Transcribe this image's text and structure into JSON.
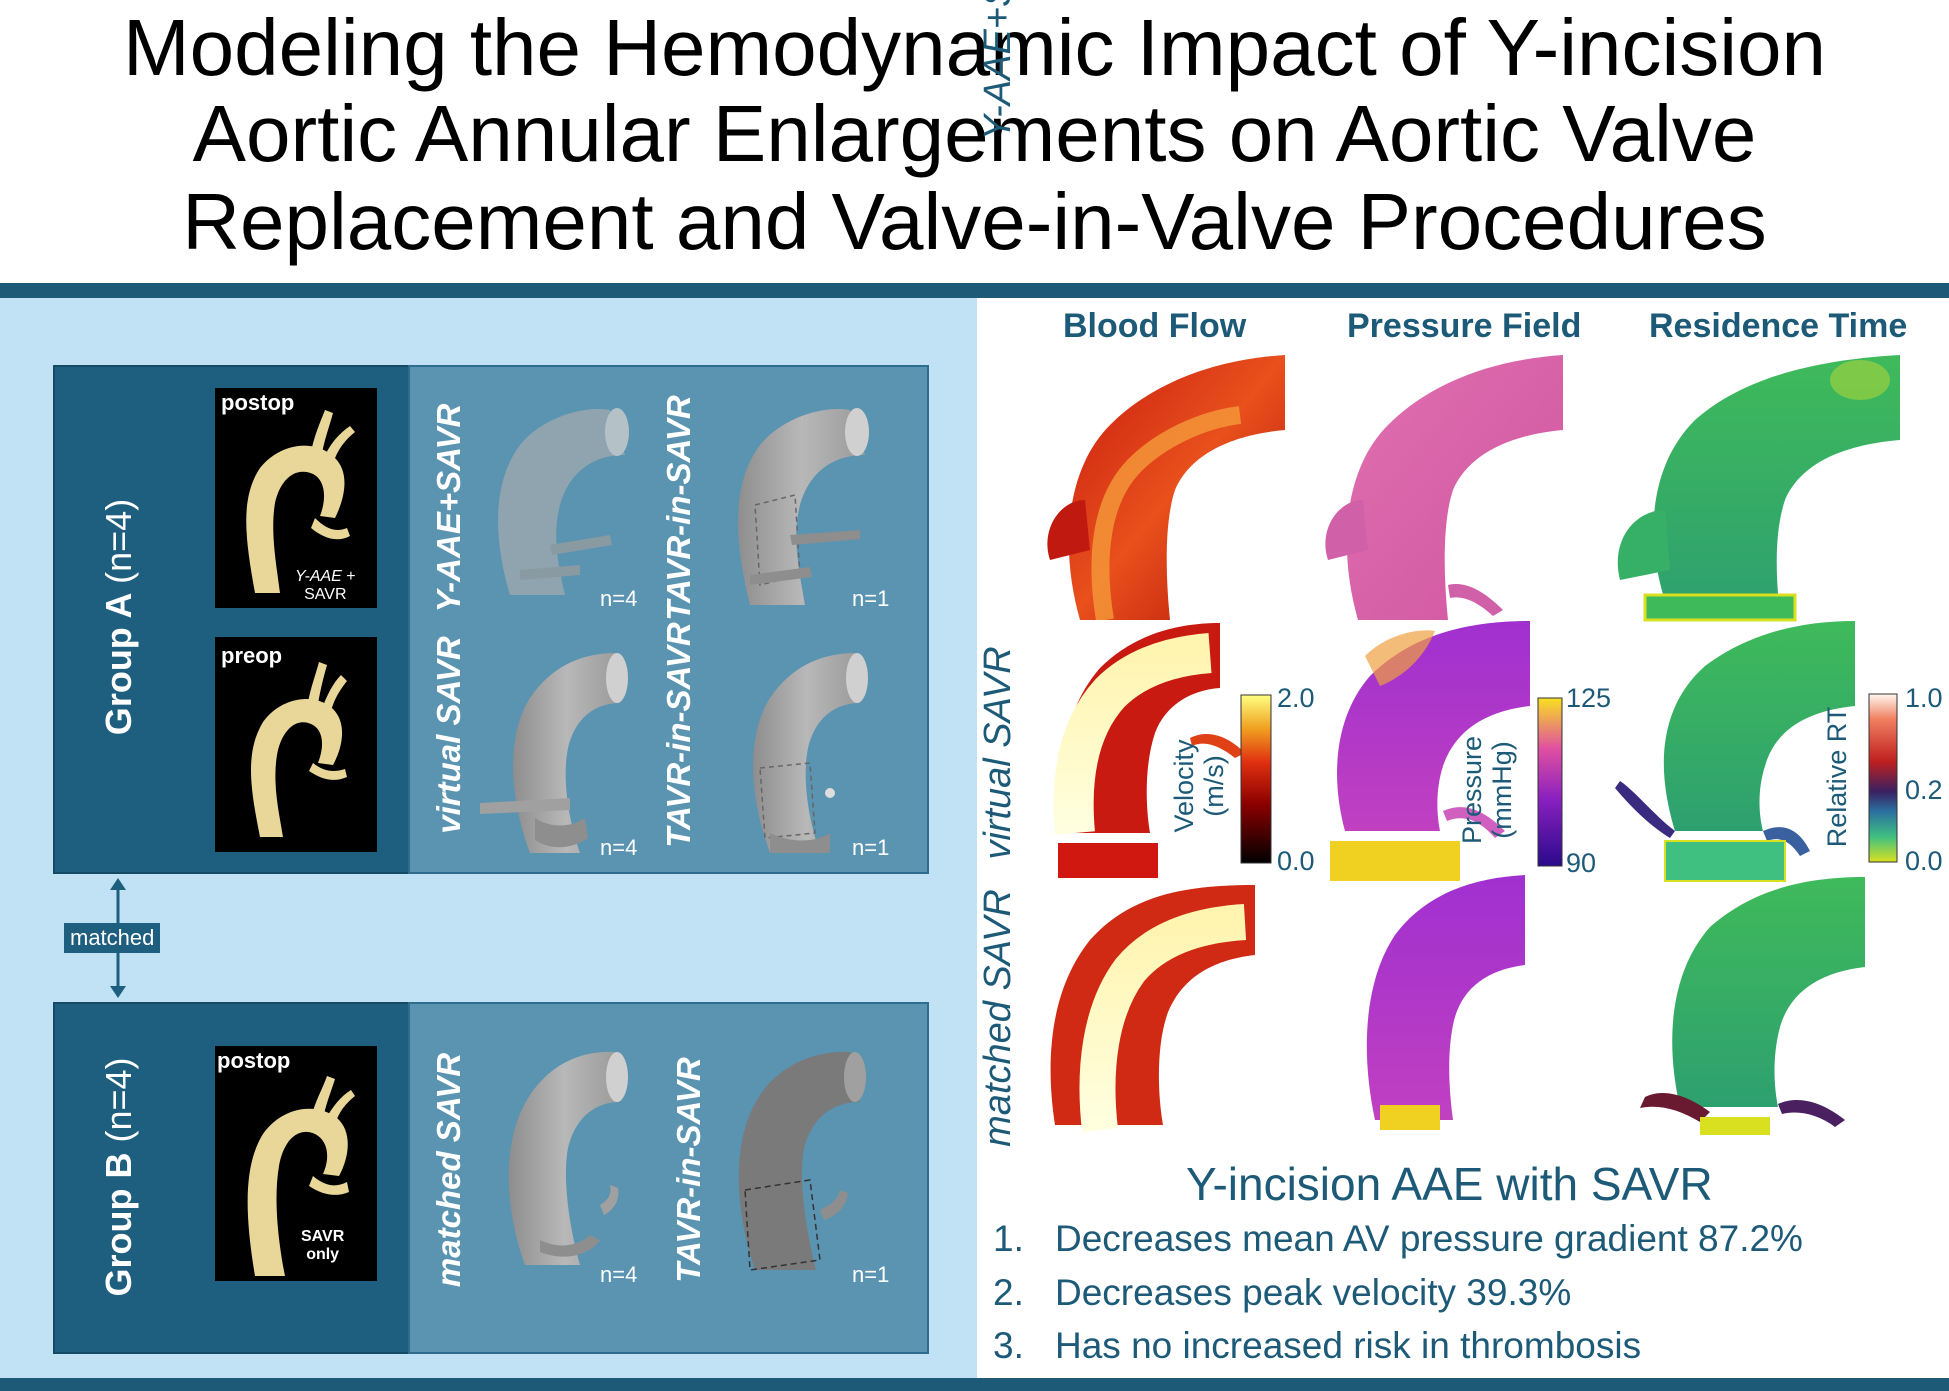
{
  "title": {
    "line1": "Modeling the Hemodynamic Impact of Y-incision",
    "line2": "Aortic Annular Enlargements on Aortic Valve",
    "line3": "Replacement and Valve-in-Valve Procedures"
  },
  "groups": [
    {
      "name": "Group A",
      "count": "(n=4)",
      "images": [
        {
          "label": "postop",
          "caption_italic": "Y-AAE",
          "caption_plus": " +",
          "caption_line2": "SAVR"
        },
        {
          "label": "preop"
        }
      ],
      "models": [
        {
          "label": "Y-AAE+SAVR",
          "n": [
            "n=4",
            "n=1"
          ],
          "second_label": "TAVR-in-SAVR"
        },
        {
          "label": "virtual SAVR",
          "n": [
            "n=4",
            "n=1"
          ],
          "second_label": "TAVR-in-SAVR"
        }
      ]
    },
    {
      "name": "Group B",
      "count": "(n=4)",
      "images": [
        {
          "label": "postop",
          "caption_line1": "SAVR",
          "caption_line2": "only"
        }
      ],
      "models": [
        {
          "label": "matched SAVR",
          "n": [
            "n=4",
            "n=1"
          ],
          "second_label": "TAVR-in-SAVR"
        }
      ]
    }
  ],
  "matched_label": "matched",
  "results": {
    "columns": [
      "Blood Flow",
      "Pressure Field",
      "Residence Time"
    ],
    "rows": [
      "Y-AAE+SAVR",
      "virtual SAVR",
      "matched SAVR"
    ],
    "colorbars": [
      {
        "title_line1": "Velocity",
        "title_line2": "(m/s)",
        "max": "2.0",
        "min": "0.0"
      },
      {
        "title_line1": "Pressure",
        "title_line2": "(mmHg)",
        "max": "125",
        "min": "90"
      },
      {
        "title_line1": "Relative RT",
        "max": "1.0",
        "mid": "0.2",
        "min": "0.0"
      }
    ]
  },
  "conclusion": {
    "title": "Y-incision AAE with SAVR",
    "items": [
      {
        "num": "1.",
        "text": "Decreases mean AV pressure gradient 87.2%"
      },
      {
        "num": "2.",
        "text": "Decreases peak velocity 39.3%"
      },
      {
        "num": "3.",
        "text": "Has no increased risk in thrombosis"
      }
    ]
  },
  "colors": {
    "band": "#1c5a78",
    "left_panel": "#c0e2f4",
    "group_box": "#1e5f80",
    "models_box": "#5a94b1",
    "aorta_yellow": "#e9d79a",
    "aorta_grey": "#a6a6a6"
  }
}
